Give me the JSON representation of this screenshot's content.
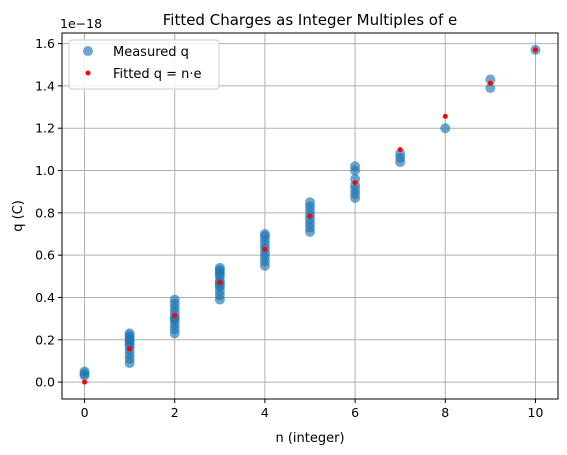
{
  "chart_data": {
    "type": "scatter",
    "title": "Fitted Charges as Integer Multiples of e",
    "xlabel": "n (integer)",
    "ylabel": "q (C)",
    "y_offset_label": "1e−18",
    "xlim": [
      -0.5,
      10.5
    ],
    "ylim": [
      -0.08,
      1.65
    ],
    "x_ticks": [
      0,
      2,
      4,
      6,
      8,
      10
    ],
    "y_ticks": [
      0.0,
      0.2,
      0.4,
      0.6,
      0.8,
      1.0,
      1.2,
      1.4,
      1.6
    ],
    "x_tick_labels": [
      "0",
      "2",
      "4",
      "6",
      "8",
      "10"
    ],
    "y_tick_labels": [
      "0.0",
      "0.2",
      "0.4",
      "0.6",
      "0.8",
      "1.0",
      "1.2",
      "1.4",
      "1.6"
    ],
    "grid": true,
    "legend": {
      "placement": "top-left"
    },
    "series": [
      {
        "name": "Measured q",
        "color": "#1f77b4",
        "marker": "circle",
        "points": [
          [
            0,
            0.03
          ],
          [
            0,
            0.04
          ],
          [
            0,
            0.05
          ],
          [
            1,
            0.09
          ],
          [
            1,
            0.11
          ],
          [
            1,
            0.13
          ],
          [
            1,
            0.15
          ],
          [
            1,
            0.17
          ],
          [
            1,
            0.18
          ],
          [
            1,
            0.19
          ],
          [
            1,
            0.2
          ],
          [
            1,
            0.21
          ],
          [
            1,
            0.22
          ],
          [
            1,
            0.23
          ],
          [
            2,
            0.23
          ],
          [
            2,
            0.25
          ],
          [
            2,
            0.27
          ],
          [
            2,
            0.29
          ],
          [
            2,
            0.3
          ],
          [
            2,
            0.31
          ],
          [
            2,
            0.33
          ],
          [
            2,
            0.35
          ],
          [
            2,
            0.37
          ],
          [
            2,
            0.39
          ],
          [
            3,
            0.39
          ],
          [
            3,
            0.41
          ],
          [
            3,
            0.43
          ],
          [
            3,
            0.45
          ],
          [
            3,
            0.46
          ],
          [
            3,
            0.47
          ],
          [
            3,
            0.48
          ],
          [
            3,
            0.5
          ],
          [
            3,
            0.51
          ],
          [
            3,
            0.52
          ],
          [
            3,
            0.53
          ],
          [
            3,
            0.54
          ],
          [
            4,
            0.55
          ],
          [
            4,
            0.57
          ],
          [
            4,
            0.59
          ],
          [
            4,
            0.61
          ],
          [
            4,
            0.63
          ],
          [
            4,
            0.65
          ],
          [
            4,
            0.67
          ],
          [
            4,
            0.69
          ],
          [
            4,
            0.7
          ],
          [
            5,
            0.71
          ],
          [
            5,
            0.73
          ],
          [
            5,
            0.75
          ],
          [
            5,
            0.77
          ],
          [
            5,
            0.79
          ],
          [
            5,
            0.81
          ],
          [
            5,
            0.83
          ],
          [
            5,
            0.85
          ],
          [
            6,
            0.87
          ],
          [
            6,
            0.89
          ],
          [
            6,
            0.91
          ],
          [
            6,
            0.93
          ],
          [
            6,
            0.96
          ],
          [
            6,
            1.0
          ],
          [
            6,
            1.02
          ],
          [
            7,
            1.04
          ],
          [
            7,
            1.06
          ],
          [
            7,
            1.08
          ],
          [
            8,
            1.2
          ],
          [
            9,
            1.39
          ],
          [
            9,
            1.43
          ],
          [
            10,
            1.57
          ]
        ]
      },
      {
        "name": "Fitted q = n·e",
        "color": "#ff0000",
        "marker": "dot",
        "points": [
          [
            0,
            0.0
          ],
          [
            1,
            0.157
          ],
          [
            2,
            0.314
          ],
          [
            3,
            0.471
          ],
          [
            4,
            0.628
          ],
          [
            5,
            0.785
          ],
          [
            6,
            0.942
          ],
          [
            7,
            1.099
          ],
          [
            8,
            1.256
          ],
          [
            9,
            1.413
          ],
          [
            10,
            1.57
          ]
        ]
      }
    ]
  }
}
